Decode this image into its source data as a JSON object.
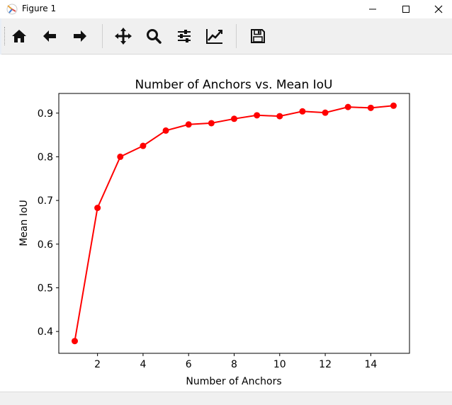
{
  "window": {
    "title": "Figure 1",
    "icon": "matplotlib-icon",
    "controls": [
      "minimize-icon",
      "maximize-icon",
      "close-icon"
    ]
  },
  "toolbar": {
    "tools": [
      {
        "name": "home-button",
        "icon": "home-icon"
      },
      {
        "name": "back-button",
        "icon": "arrow-left-icon"
      },
      {
        "name": "forward-button",
        "icon": "arrow-right-icon"
      },
      {
        "name": "pan-button",
        "icon": "move-arrows-icon"
      },
      {
        "name": "zoom-button",
        "icon": "magnifier-icon"
      },
      {
        "name": "configure-subplots-button",
        "icon": "sliders-icon"
      },
      {
        "name": "edit-axis-button",
        "icon": "line-chart-icon"
      },
      {
        "name": "save-button",
        "icon": "floppy-disk-icon"
      }
    ]
  },
  "chart_data": {
    "type": "line",
    "title": "Number of Anchors vs. Mean IoU",
    "xlabel": "Number of Anchors",
    "ylabel": "Mean IoU",
    "x": [
      1,
      2,
      3,
      4,
      5,
      6,
      7,
      8,
      9,
      10,
      11,
      12,
      13,
      14,
      15
    ],
    "y": [
      0.378,
      0.683,
      0.8,
      0.825,
      0.86,
      0.874,
      0.877,
      0.887,
      0.895,
      0.893,
      0.904,
      0.901,
      0.914,
      0.912,
      0.917
    ],
    "xlim": [
      0.3,
      15.7
    ],
    "ylim": [
      0.35,
      0.945
    ],
    "xticks": [
      "2",
      "4",
      "6",
      "8",
      "10",
      "12",
      "14"
    ],
    "xtick_values": [
      2,
      4,
      6,
      8,
      10,
      12,
      14
    ],
    "yticks": [
      "0.4",
      "0.5",
      "0.6",
      "0.7",
      "0.8",
      "0.9"
    ],
    "ytick_values": [
      0.4,
      0.5,
      0.6,
      0.7,
      0.8,
      0.9
    ],
    "line_color": "#ff0000",
    "marker": "circle",
    "grid": false,
    "legend": "none"
  }
}
